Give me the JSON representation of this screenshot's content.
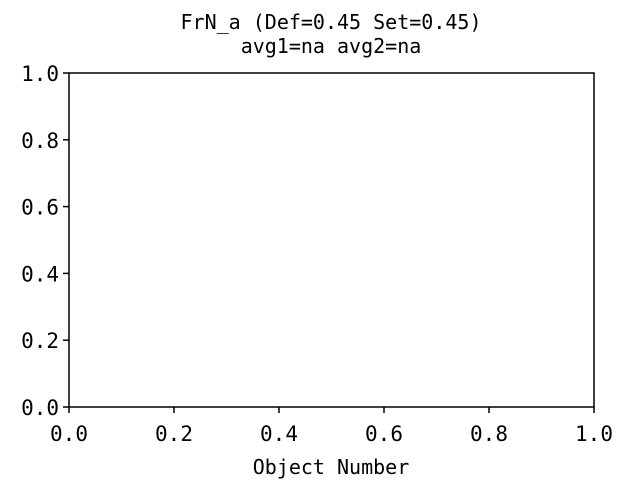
{
  "chart_data": {
    "type": "scatter",
    "title_line1": "FrN_a (Def=0.45 Set=0.45)",
    "title_line2": "avg1=na avg2=na",
    "xlabel": "Object Number",
    "ylabel": "",
    "xlim": [
      0.0,
      1.0
    ],
    "ylim": [
      0.0,
      1.0
    ],
    "x_ticks": [
      "0.0",
      "0.2",
      "0.4",
      "0.6",
      "0.8",
      "1.0"
    ],
    "y_ticks": [
      "0.0",
      "0.2",
      "0.4",
      "0.6",
      "0.8",
      "1.0"
    ],
    "x_tick_values": [
      0.0,
      0.2,
      0.4,
      0.6,
      0.8,
      1.0
    ],
    "y_tick_values": [
      0.0,
      0.2,
      0.4,
      0.6,
      0.8,
      1.0
    ],
    "series": [],
    "grid": false,
    "legend": "none"
  }
}
